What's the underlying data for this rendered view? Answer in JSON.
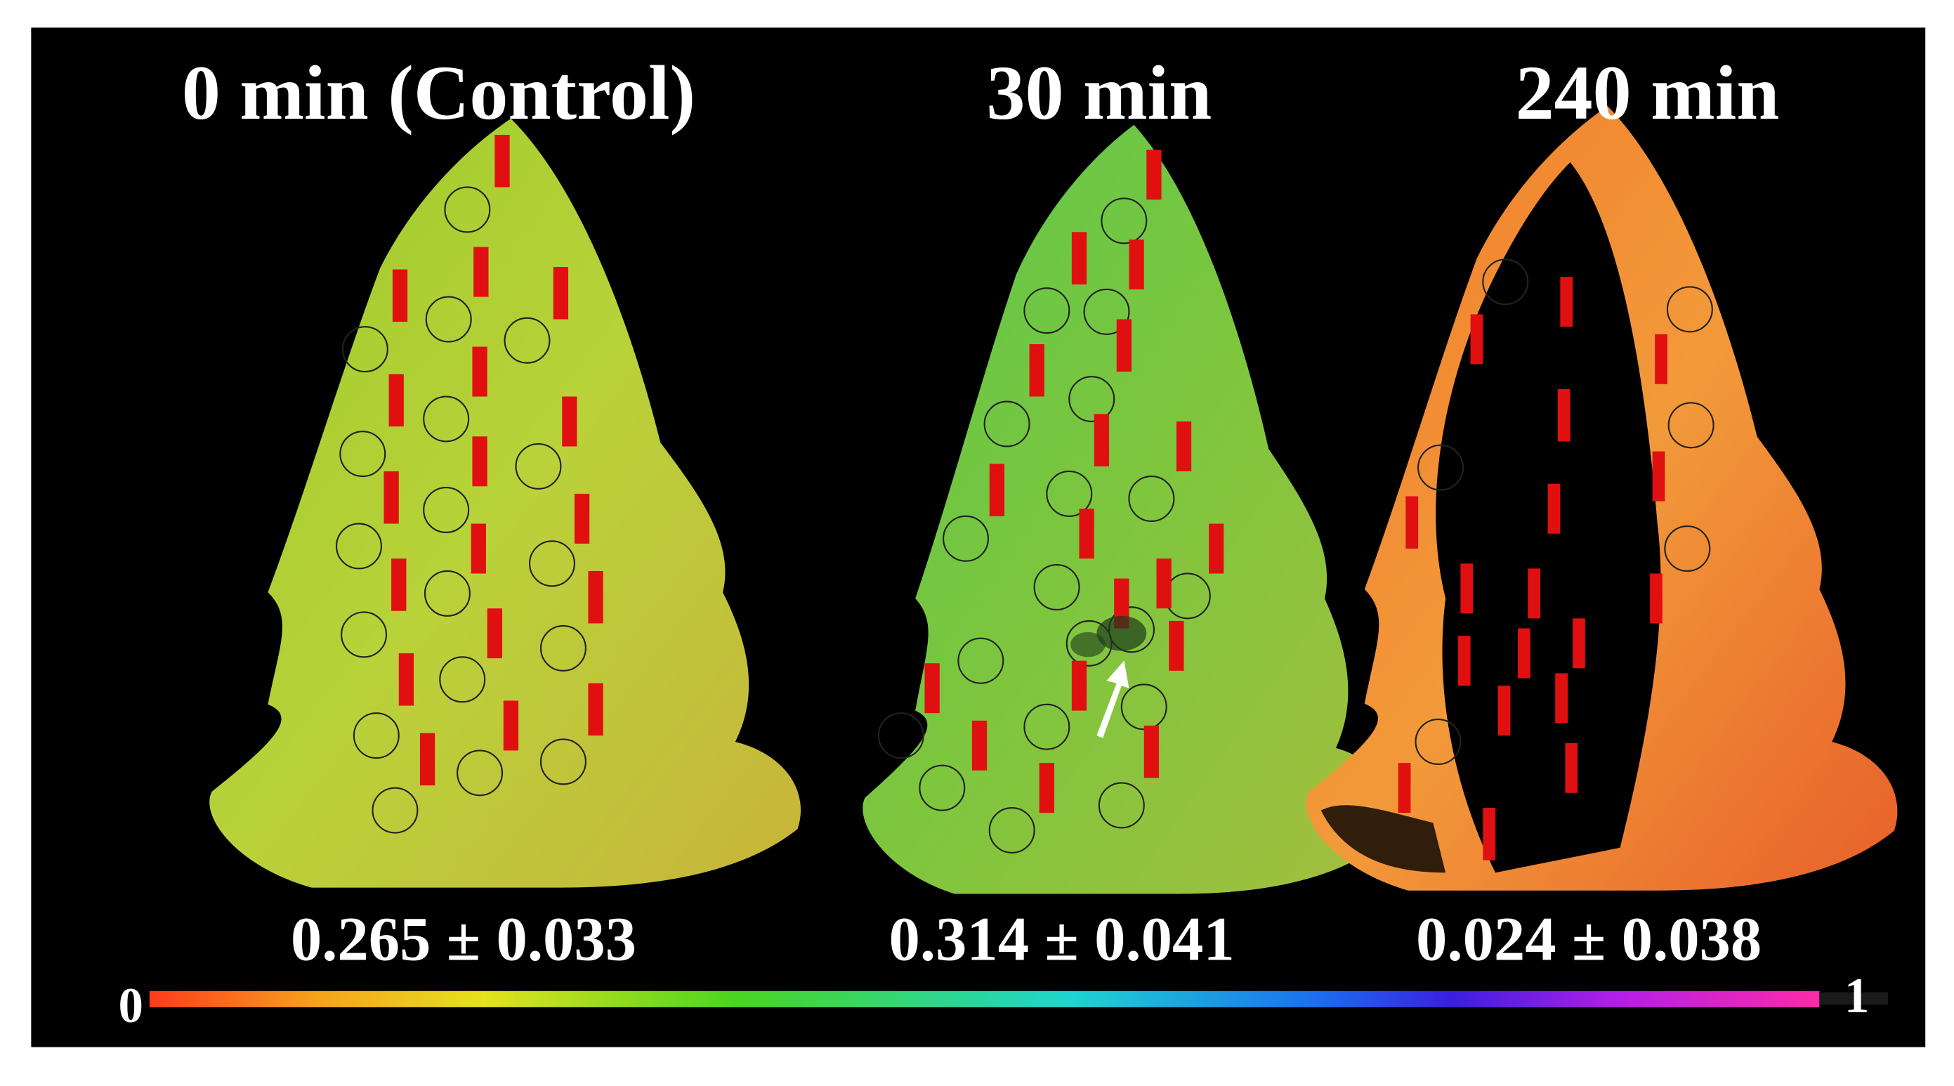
{
  "panels": [
    {
      "title": "0 min (Control)",
      "value": "0.265 ± 0.033"
    },
    {
      "title": "30 min",
      "value": "0.314 ± 0.041"
    },
    {
      "title": "240 min",
      "value": "0.024 ± 0.038"
    }
  ],
  "colorbar": {
    "min_label": "0",
    "max_label": "1"
  }
}
